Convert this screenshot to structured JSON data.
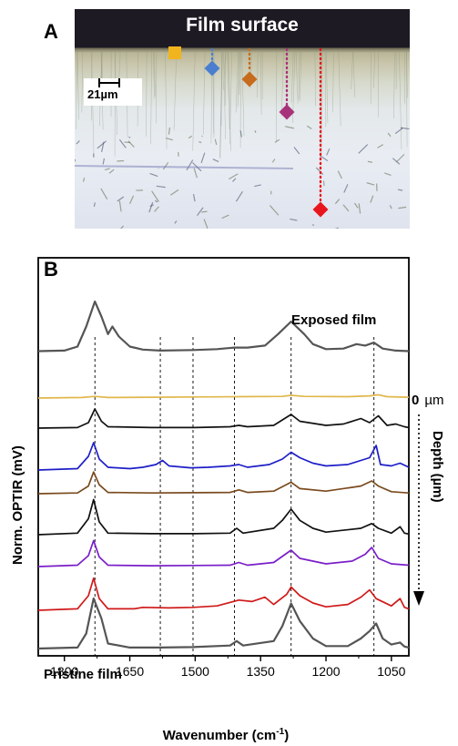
{
  "panel_a": {
    "label": "A",
    "title": "Film surface",
    "scale_bar": "21µm",
    "markers": [
      {
        "shape": "square",
        "color": "#f2b41c"
      },
      {
        "shape": "diamond",
        "color": "#4a7fd0"
      },
      {
        "shape": "diamond",
        "color": "#c76b1d"
      },
      {
        "shape": "diamond",
        "color": "#a8327a"
      },
      {
        "shape": "diamond",
        "color": "#e8161c"
      }
    ]
  },
  "panel_b": {
    "label": "B",
    "annotations": {
      "exposed": "Exposed film",
      "pristine": "Pristine film",
      "zero": "0",
      "zero_unit": "µm",
      "depth": "Depth (µm)"
    }
  },
  "chart_data": {
    "type": "line",
    "xlabel": "Wavenumber (cm-1)",
    "xlabel_base": "Wavenumber (cm",
    "xlabel_sup": "-1",
    "xlabel_close": ")",
    "ylabel": "Norm. OPTIR (mV)",
    "xlim": [
      1860,
      1010
    ],
    "xticks": [
      1800,
      1650,
      1500,
      1350,
      1200,
      1050
    ],
    "reference_lines": [
      1730,
      1580,
      1505,
      1410,
      1280,
      1090
    ],
    "series": [
      {
        "color": "#555555",
        "values": [
          [
            1860,
            0.01
          ],
          [
            1800,
            0.02
          ],
          [
            1770,
            0.1
          ],
          [
            1750,
            0.5
          ],
          [
            1730,
            1.0
          ],
          [
            1715,
            0.7
          ],
          [
            1700,
            0.35
          ],
          [
            1690,
            0.5
          ],
          [
            1675,
            0.3
          ],
          [
            1650,
            0.1
          ],
          [
            1620,
            0.04
          ],
          [
            1580,
            0.02
          ],
          [
            1505,
            0.03
          ],
          [
            1450,
            0.05
          ],
          [
            1410,
            0.08
          ],
          [
            1380,
            0.08
          ],
          [
            1340,
            0.12
          ],
          [
            1310,
            0.35
          ],
          [
            1280,
            0.6
          ],
          [
            1250,
            0.35
          ],
          [
            1230,
            0.15
          ],
          [
            1200,
            0.05
          ],
          [
            1160,
            0.06
          ],
          [
            1130,
            0.15
          ],
          [
            1110,
            0.12
          ],
          [
            1090,
            0.18
          ],
          [
            1070,
            0.06
          ],
          [
            1040,
            0.02
          ],
          [
            1010,
            0.01
          ]
        ]
      },
      {
        "color": "#e0b74a",
        "values": [
          [
            1860,
            0
          ],
          [
            1760,
            0.02
          ],
          [
            1730,
            0.06
          ],
          [
            1700,
            0.02
          ],
          [
            1600,
            0.03
          ],
          [
            1500,
            0.04
          ],
          [
            1400,
            0.05
          ],
          [
            1300,
            0.06
          ],
          [
            1280,
            0.1
          ],
          [
            1250,
            0.06
          ],
          [
            1150,
            0.05
          ],
          [
            1100,
            0.08
          ],
          [
            1080,
            0.12
          ],
          [
            1060,
            0.05
          ],
          [
            1010,
            0.03
          ]
        ]
      },
      {
        "color": "#111111",
        "values": [
          [
            1860,
            0
          ],
          [
            1770,
            0.02
          ],
          [
            1745,
            0.2
          ],
          [
            1730,
            0.7
          ],
          [
            1715,
            0.25
          ],
          [
            1700,
            0.05
          ],
          [
            1600,
            0.02
          ],
          [
            1500,
            0.02
          ],
          [
            1420,
            0.05
          ],
          [
            1400,
            0.1
          ],
          [
            1380,
            0.05
          ],
          [
            1320,
            0.1
          ],
          [
            1280,
            0.5
          ],
          [
            1260,
            0.25
          ],
          [
            1200,
            0.1
          ],
          [
            1160,
            0.15
          ],
          [
            1120,
            0.35
          ],
          [
            1100,
            0.2
          ],
          [
            1080,
            0.45
          ],
          [
            1060,
            0.1
          ],
          [
            1040,
            0.15
          ],
          [
            1020,
            0.05
          ],
          [
            1010,
            0.02
          ]
        ]
      },
      {
        "color": "#1e1ec8",
        "values": [
          [
            1860,
            0
          ],
          [
            1770,
            0.05
          ],
          [
            1745,
            0.5
          ],
          [
            1733,
            1.0
          ],
          [
            1720,
            0.4
          ],
          [
            1700,
            0.1
          ],
          [
            1650,
            0.05
          ],
          [
            1620,
            0.1
          ],
          [
            1590,
            0.2
          ],
          [
            1575,
            0.35
          ],
          [
            1560,
            0.15
          ],
          [
            1510,
            0.08
          ],
          [
            1470,
            0.1
          ],
          [
            1420,
            0.15
          ],
          [
            1400,
            0.2
          ],
          [
            1380,
            0.1
          ],
          [
            1330,
            0.2
          ],
          [
            1300,
            0.4
          ],
          [
            1280,
            0.65
          ],
          [
            1260,
            0.45
          ],
          [
            1230,
            0.25
          ],
          [
            1200,
            0.15
          ],
          [
            1150,
            0.2
          ],
          [
            1120,
            0.35
          ],
          [
            1100,
            0.45
          ],
          [
            1085,
            0.9
          ],
          [
            1075,
            0.2
          ],
          [
            1050,
            0.15
          ],
          [
            1030,
            0.25
          ],
          [
            1010,
            0.1
          ]
        ]
      },
      {
        "color": "#7a4a1e",
        "values": [
          [
            1860,
            0
          ],
          [
            1770,
            0.03
          ],
          [
            1745,
            0.3
          ],
          [
            1733,
            0.85
          ],
          [
            1720,
            0.35
          ],
          [
            1700,
            0.05
          ],
          [
            1600,
            0.03
          ],
          [
            1500,
            0.04
          ],
          [
            1420,
            0.05
          ],
          [
            1400,
            0.15
          ],
          [
            1380,
            0.05
          ],
          [
            1320,
            0.1
          ],
          [
            1280,
            0.45
          ],
          [
            1260,
            0.2
          ],
          [
            1200,
            0.1
          ],
          [
            1120,
            0.3
          ],
          [
            1095,
            0.5
          ],
          [
            1080,
            0.3
          ],
          [
            1050,
            0.08
          ],
          [
            1010,
            0.03
          ]
        ]
      },
      {
        "color": "#111111",
        "values": [
          [
            1860,
            0
          ],
          [
            1770,
            0.05
          ],
          [
            1745,
            0.5
          ],
          [
            1733,
            1.1
          ],
          [
            1720,
            0.4
          ],
          [
            1700,
            0.05
          ],
          [
            1600,
            0.03
          ],
          [
            1500,
            0.03
          ],
          [
            1420,
            0.05
          ],
          [
            1405,
            0.2
          ],
          [
            1390,
            0.05
          ],
          [
            1320,
            0.2
          ],
          [
            1300,
            0.45
          ],
          [
            1280,
            0.8
          ],
          [
            1260,
            0.45
          ],
          [
            1230,
            0.2
          ],
          [
            1200,
            0.08
          ],
          [
            1120,
            0.2
          ],
          [
            1095,
            0.35
          ],
          [
            1080,
            0.2
          ],
          [
            1050,
            0.05
          ],
          [
            1030,
            0.25
          ],
          [
            1020,
            0.05
          ],
          [
            1010,
            0.02
          ]
        ]
      },
      {
        "color": "#7a1ec8",
        "values": [
          [
            1860,
            0
          ],
          [
            1770,
            0.05
          ],
          [
            1745,
            0.4
          ],
          [
            1733,
            0.95
          ],
          [
            1720,
            0.35
          ],
          [
            1700,
            0.05
          ],
          [
            1600,
            0.03
          ],
          [
            1500,
            0.04
          ],
          [
            1420,
            0.05
          ],
          [
            1400,
            0.15
          ],
          [
            1380,
            0.05
          ],
          [
            1320,
            0.15
          ],
          [
            1280,
            0.6
          ],
          [
            1260,
            0.3
          ],
          [
            1200,
            0.1
          ],
          [
            1140,
            0.2
          ],
          [
            1110,
            0.45
          ],
          [
            1095,
            0.7
          ],
          [
            1080,
            0.3
          ],
          [
            1050,
            0.1
          ],
          [
            1010,
            0.05
          ]
        ]
      },
      {
        "color": "#d01a1a",
        "values": [
          [
            1860,
            0
          ],
          [
            1770,
            0.05
          ],
          [
            1745,
            0.5
          ],
          [
            1733,
            1.1
          ],
          [
            1720,
            0.4
          ],
          [
            1700,
            0.05
          ],
          [
            1640,
            0.05
          ],
          [
            1620,
            0.1
          ],
          [
            1560,
            0.08
          ],
          [
            1505,
            0.1
          ],
          [
            1450,
            0.15
          ],
          [
            1400,
            0.35
          ],
          [
            1370,
            0.3
          ],
          [
            1340,
            0.45
          ],
          [
            1320,
            0.2
          ],
          [
            1290,
            0.55
          ],
          [
            1280,
            0.8
          ],
          [
            1260,
            0.5
          ],
          [
            1230,
            0.25
          ],
          [
            1200,
            0.12
          ],
          [
            1150,
            0.2
          ],
          [
            1120,
            0.45
          ],
          [
            1100,
            0.7
          ],
          [
            1085,
            0.4
          ],
          [
            1050,
            0.15
          ],
          [
            1030,
            0.4
          ],
          [
            1020,
            0.1
          ],
          [
            1010,
            0.05
          ]
        ]
      },
      {
        "color": "#555555",
        "values": [
          [
            1860,
            0
          ],
          [
            1770,
            0.02
          ],
          [
            1750,
            0.3
          ],
          [
            1733,
            1.0
          ],
          [
            1715,
            0.6
          ],
          [
            1700,
            0.1
          ],
          [
            1650,
            0.02
          ],
          [
            1580,
            0.02
          ],
          [
            1505,
            0.03
          ],
          [
            1420,
            0.06
          ],
          [
            1405,
            0.15
          ],
          [
            1390,
            0.06
          ],
          [
            1320,
            0.15
          ],
          [
            1300,
            0.45
          ],
          [
            1280,
            0.9
          ],
          [
            1260,
            0.55
          ],
          [
            1230,
            0.2
          ],
          [
            1200,
            0.05
          ],
          [
            1150,
            0.05
          ],
          [
            1120,
            0.2
          ],
          [
            1100,
            0.35
          ],
          [
            1085,
            0.5
          ],
          [
            1070,
            0.2
          ],
          [
            1050,
            0.08
          ],
          [
            1030,
            0.12
          ],
          [
            1020,
            0.04
          ],
          [
            1010,
            0.02
          ]
        ]
      }
    ]
  }
}
